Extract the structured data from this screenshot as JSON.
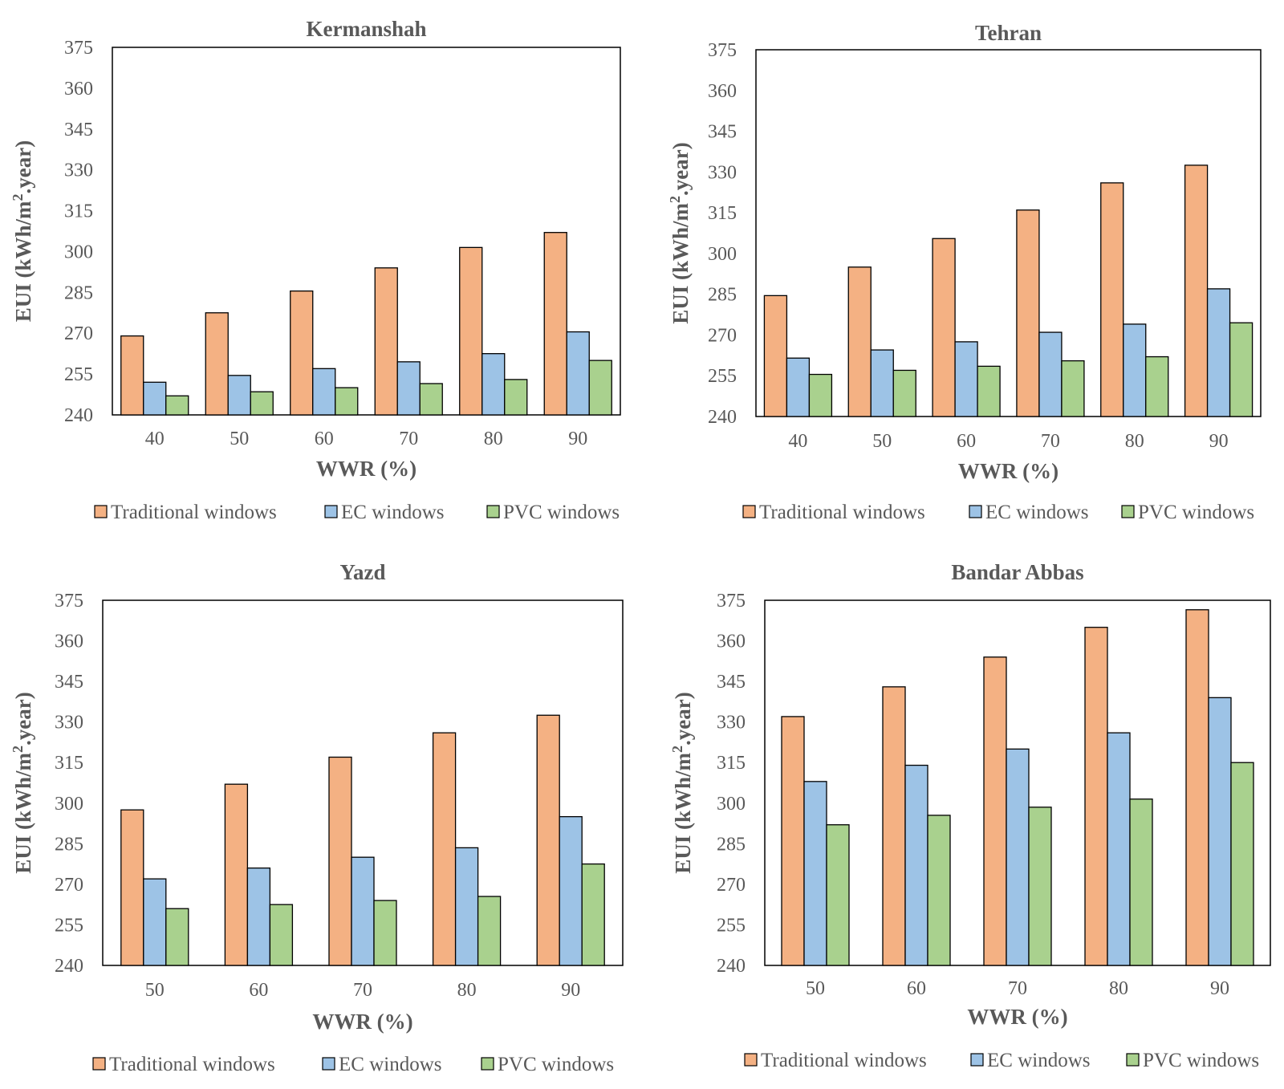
{
  "colors": {
    "traditional": "#f4b183",
    "ec": "#9dc3e6",
    "pvc": "#a9d18e",
    "text": "#595959",
    "outline": "#000000"
  },
  "chart_data": [
    {
      "type": "bar",
      "title": "Kermanshah",
      "xlabel": "WWR (%)",
      "ylabel": "EUI (kWh/m².year)",
      "ylim": [
        240,
        375
      ],
      "yticks": [
        "240",
        "255",
        "270",
        "285",
        "300",
        "315",
        "330",
        "345",
        "360",
        "375"
      ],
      "categories": [
        "40",
        "50",
        "60",
        "70",
        "80",
        "90"
      ],
      "legend_position": "bottom",
      "series": [
        {
          "name": "Traditional windows",
          "color_key": "traditional",
          "values": [
            269,
            277.5,
            285.5,
            294,
            301.5,
            307
          ]
        },
        {
          "name": "EC windows",
          "color_key": "ec",
          "values": [
            252,
            254.5,
            257,
            259.5,
            262.5,
            270.5
          ]
        },
        {
          "name": "PVC windows",
          "color_key": "pvc",
          "values": [
            247,
            248.5,
            250,
            251.5,
            253,
            260
          ]
        }
      ]
    },
    {
      "type": "bar",
      "title": "Tehran",
      "xlabel": "WWR (%)",
      "ylabel": "EUI (kWh/m².year)",
      "ylim": [
        240,
        375
      ],
      "yticks": [
        "240",
        "255",
        "270",
        "285",
        "300",
        "315",
        "330",
        "345",
        "360",
        "375"
      ],
      "categories": [
        "40",
        "50",
        "60",
        "70",
        "80",
        "90"
      ],
      "legend_position": "bottom",
      "series": [
        {
          "name": "Traditional windows",
          "color_key": "traditional",
          "values": [
            284.5,
            295,
            305.5,
            316,
            326,
            332.5
          ]
        },
        {
          "name": "EC windows",
          "color_key": "ec",
          "values": [
            261.5,
            264.5,
            267.5,
            271,
            274,
            287
          ]
        },
        {
          "name": "PVC windows",
          "color_key": "pvc",
          "values": [
            255.5,
            257,
            258.5,
            260.5,
            262,
            274.5
          ]
        }
      ]
    },
    {
      "type": "bar",
      "title": "Yazd",
      "xlabel": "WWR (%)",
      "ylabel": "EUI (kWh/m².year)",
      "ylim": [
        240,
        375
      ],
      "yticks": [
        "240",
        "255",
        "270",
        "285",
        "300",
        "315",
        "330",
        "345",
        "360",
        "375"
      ],
      "categories": [
        "50",
        "60",
        "70",
        "80",
        "90"
      ],
      "legend_position": "bottom",
      "series": [
        {
          "name": "Traditional windows",
          "color_key": "traditional",
          "values": [
            297.5,
            307,
            317,
            326,
            332.5
          ]
        },
        {
          "name": "EC windows",
          "color_key": "ec",
          "values": [
            272,
            276,
            280,
            283.5,
            295
          ]
        },
        {
          "name": "PVC windows",
          "color_key": "pvc",
          "values": [
            261,
            262.5,
            264,
            265.5,
            277.5
          ]
        }
      ]
    },
    {
      "type": "bar",
      "title": "Bandar Abbas",
      "xlabel": "WWR (%)",
      "ylabel": "EUI (kWh/m².year)",
      "ylim": [
        240,
        375
      ],
      "yticks": [
        "240",
        "255",
        "270",
        "285",
        "300",
        "315",
        "330",
        "345",
        "360",
        "375"
      ],
      "categories": [
        "50",
        "60",
        "70",
        "80",
        "90"
      ],
      "legend_position": "bottom",
      "series": [
        {
          "name": "Traditional windows",
          "color_key": "traditional",
          "values": [
            332,
            343,
            354,
            365,
            371.5
          ]
        },
        {
          "name": "EC windows",
          "color_key": "ec",
          "values": [
            308,
            314,
            320,
            326,
            339
          ]
        },
        {
          "name": "PVC windows",
          "color_key": "pvc",
          "values": [
            292,
            295.5,
            298.5,
            301.5,
            315
          ]
        }
      ]
    }
  ]
}
